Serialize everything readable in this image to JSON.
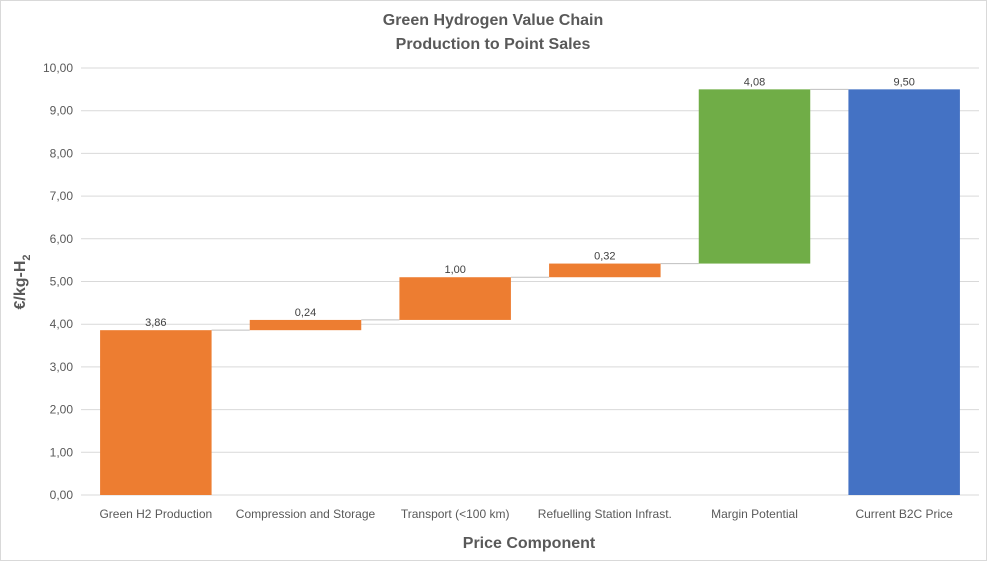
{
  "chart_data": {
    "type": "bar",
    "subtype": "waterfall",
    "title": "Green Hydrogen Value Chain",
    "subtitle": "Production to Point Sales",
    "xlabel": "Price Component",
    "ylabel": "€/kg-H",
    "ylabel_subscript": "2",
    "ylim": [
      0,
      10
    ],
    "ytick_step": 1,
    "ytick_labels": [
      "0,00",
      "1,00",
      "2,00",
      "3,00",
      "4,00",
      "5,00",
      "6,00",
      "7,00",
      "8,00",
      "9,00",
      "10,00"
    ],
    "grid": true,
    "legend": "none",
    "categories": [
      "Green H2 Production",
      "Compression and Storage",
      "Transport (<100 km)",
      "Refuelling Station Infrast.",
      "Margin Potential",
      "Current B2C Price"
    ],
    "values": [
      3.86,
      0.24,
      1.0,
      0.32,
      4.08,
      9.5
    ],
    "data_labels": [
      "3,86",
      "0,24",
      "1,00",
      "0,32",
      "4,08",
      "9,50"
    ],
    "bar_kinds": [
      "increase",
      "increase",
      "increase",
      "increase",
      "margin",
      "total"
    ],
    "colors": {
      "increase": "#ed7d31",
      "margin": "#70ad47",
      "total": "#4472c4",
      "grid": "#d9d9d9",
      "connector": "#bfbfbf",
      "text": "#595959"
    }
  }
}
